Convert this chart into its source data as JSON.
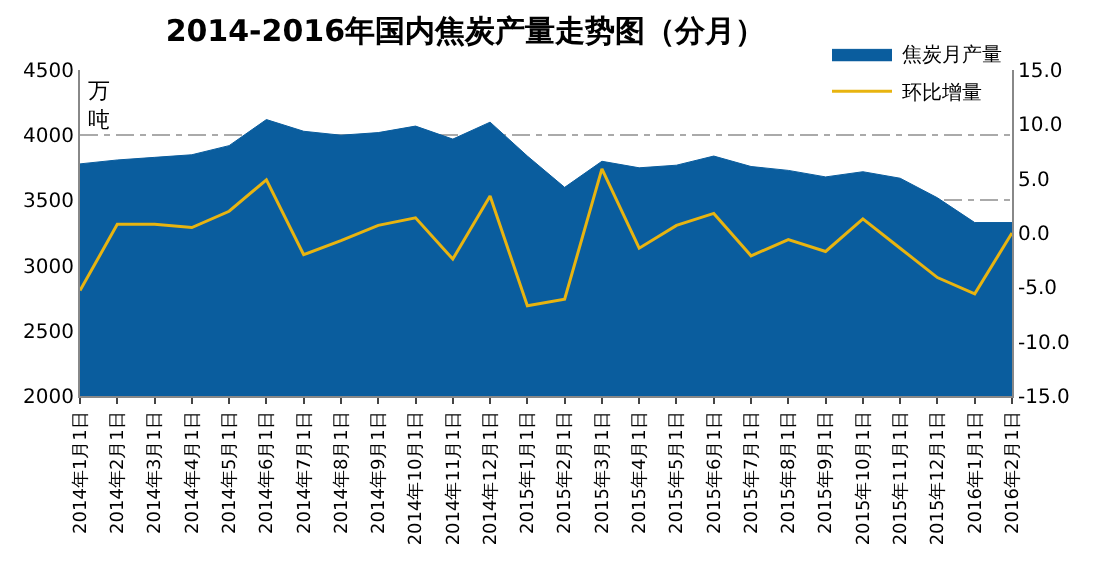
{
  "chart_data": {
    "type": "area",
    "title": "2014-2016年国内焦炭产量走势图（分月）",
    "ylabel": "万吨",
    "categories": [
      "2014年1月1日",
      "2014年2月1日",
      "2014年3月1日",
      "2014年4月1日",
      "2014年5月1日",
      "2014年6月1日",
      "2014年7月1日",
      "2014年8月1日",
      "2014年9月1日",
      "2014年10月1日",
      "2014年11月1日",
      "2014年12月1日",
      "2015年1月1日",
      "2015年2月1日",
      "2015年3月1日",
      "2015年4月1日",
      "2015年5月1日",
      "2015年6月1日",
      "2015年7月1日",
      "2015年8月1日",
      "2015年9月1日",
      "2015年10月1日",
      "2015年11月1日",
      "2015年12月1日",
      "2016年1月1日",
      "2016年2月1日"
    ],
    "series": [
      {
        "name": "焦炭月产量",
        "color": "#0a5d9e",
        "values": [
          3780,
          3810,
          3830,
          3850,
          3920,
          4120,
          4030,
          4000,
          4020,
          4070,
          3970,
          4100,
          3840,
          3600,
          3800,
          3750,
          3770,
          3840,
          3760,
          3730,
          3680,
          3720,
          3670,
          3520,
          3330,
          3330
        ]
      },
      {
        "name": "环比增量",
        "type": "line",
        "axis": "y2",
        "color": "#e8b410",
        "values": [
          -5.3,
          0.8,
          0.8,
          0.5,
          2.0,
          4.9,
          -2.0,
          -0.7,
          0.7,
          1.4,
          -2.4,
          3.4,
          -6.7,
          -6.1,
          5.9,
          -1.4,
          0.7,
          1.8,
          -2.1,
          -0.6,
          -1.7,
          1.3,
          -1.4,
          -4.1,
          -5.6,
          0.0
        ]
      }
    ],
    "ylim": [
      2000,
      4500
    ],
    "yticks": [
      2000,
      2500,
      3000,
      3500,
      4000,
      4500
    ],
    "y2lim": [
      -15,
      15
    ],
    "y2ticks": [
      {
        "value": -15,
        "label": "-15.0"
      },
      {
        "value": -10,
        "label": "-10.0"
      },
      {
        "value": -5,
        "label": "-5.0"
      },
      {
        "value": 0,
        "label": "0.0"
      },
      {
        "value": 5,
        "label": "5.0"
      },
      {
        "value": 10,
        "label": "10.0"
      },
      {
        "value": 15,
        "label": "15.0"
      }
    ],
    "grid": "y",
    "legend": "top right",
    "marker": "none",
    "line_style": "solid"
  }
}
